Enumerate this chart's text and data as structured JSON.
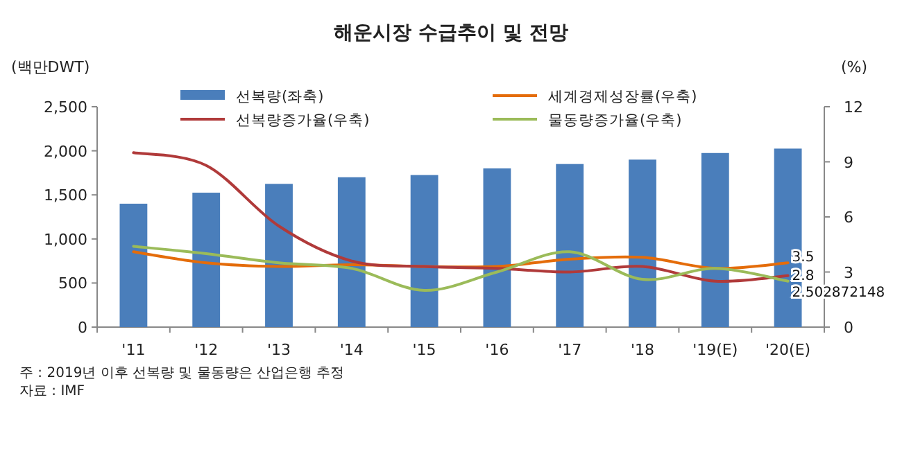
{
  "chart_data": {
    "type": "bar",
    "title": "해운시장 수급추이 및 전망",
    "ylabel": "(백만DWT)",
    "y2label": "(%)",
    "categories": [
      "'11",
      "'12",
      "'13",
      "'14",
      "'15",
      "'16",
      "'17",
      "'18",
      "'19(E)",
      "'20(E)"
    ],
    "series": [
      {
        "name": "선복량(좌축)",
        "color": "#4a7ebb",
        "values": [
          1400,
          1525,
          1625,
          1700,
          1725,
          1800,
          1850,
          1900,
          1975,
          2025
        ]
      },
      {
        "name": "세계경제성장률(우축)",
        "type": "line",
        "axis": "y2",
        "color": "#e46c0a",
        "values": [
          4.1,
          3.5,
          3.3,
          3.4,
          3.3,
          3.3,
          3.7,
          3.8,
          3.2,
          3.5
        ],
        "value_labels": [
          null,
          null,
          null,
          null,
          null,
          null,
          null,
          null,
          null,
          "3.5"
        ]
      },
      {
        "name": "선복량증가율(우축)",
        "type": "line",
        "axis": "y2",
        "color": "#b03a3a",
        "values": [
          9.5,
          8.8,
          5.5,
          3.6,
          3.3,
          3.2,
          3.0,
          3.3,
          2.5,
          2.8
        ],
        "value_labels": [
          null,
          null,
          null,
          null,
          null,
          null,
          null,
          null,
          null,
          "2.8"
        ]
      },
      {
        "name": "물동량증가율(우축)",
        "type": "line",
        "axis": "y2",
        "color": "#9bbb59",
        "values": [
          4.4,
          4.0,
          3.5,
          3.2,
          2.0,
          3.0,
          4.1,
          2.6,
          3.2,
          2.502872148
        ],
        "value_labels": [
          null,
          null,
          null,
          null,
          null,
          null,
          null,
          null,
          null,
          "2.502872148"
        ]
      }
    ],
    "ylim": [
      0,
      2500
    ],
    "yticks": [
      0,
      {
        "value": 500,
        "label": "500"
      },
      {
        "value": 1000,
        "label": "1,000"
      },
      {
        "value": 1500,
        "label": "1,500"
      },
      {
        "value": 2000,
        "label": "2,000"
      },
      {
        "value": 2500,
        "label": "2,500"
      }
    ],
    "y2lim": [
      0,
      12
    ],
    "y2ticks": [
      0,
      3,
      6,
      9,
      12
    ],
    "legend": "top",
    "grid": false,
    "annotations": [
      "주 : 2019년 이후 선복량 및 물동량은 산업은행 추정",
      "자료 : IMF"
    ]
  }
}
